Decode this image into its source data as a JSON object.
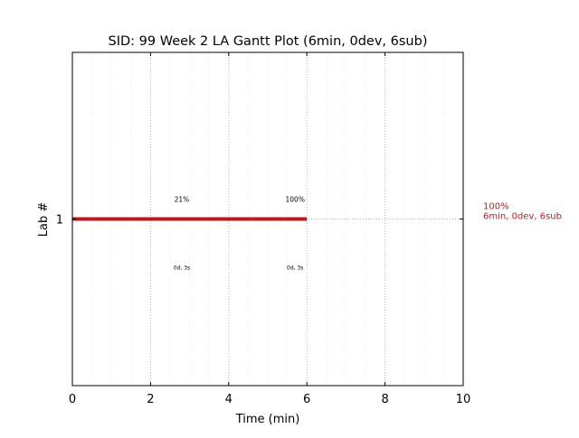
{
  "chart_data": {
    "type": "gantt",
    "title": "SID: 99 Week 2 LA Gantt Plot (6min, 0dev, 6sub)",
    "xlabel": "Time (min)",
    "ylabel": "Lab #",
    "xlim": [
      0,
      10
    ],
    "xticks": [
      0,
      2,
      4,
      6,
      8,
      10
    ],
    "minor_xticks": [
      0.5,
      1,
      1.5,
      2.5,
      3,
      3.5,
      4.5,
      5,
      5.5,
      6.5,
      7,
      7.5,
      8.5,
      9,
      9.5
    ],
    "yticks": [
      {
        "value": 1,
        "label": "1"
      }
    ],
    "ylim": [
      0,
      2
    ],
    "grid": true,
    "color": "#c0181d",
    "series": [
      {
        "lab": 1,
        "start": 0,
        "end": 6,
        "summary_pct": "100%",
        "summary_detail": "6min, 0dev, 6sub"
      }
    ],
    "annotations": [
      {
        "x": 2.8,
        "pct": "21%",
        "detail": "0d, 3s"
      },
      {
        "x": 5.7,
        "pct": "100%",
        "detail": "0d, 3s"
      }
    ]
  }
}
